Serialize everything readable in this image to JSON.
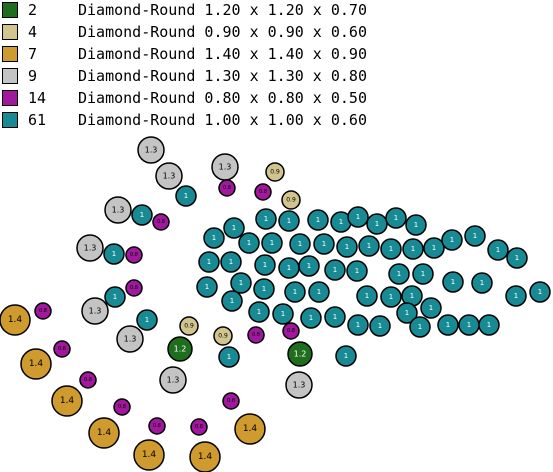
{
  "legend": [
    {
      "count": "2",
      "shape": "Diamond-Round",
      "size": "1.20 x 1.20 x 0.70",
      "color": "#1e6e1e"
    },
    {
      "count": "4",
      "shape": "Diamond-Round",
      "size": "0.90 x 0.90 x 0.60",
      "color": "#d1c48e"
    },
    {
      "count": "7",
      "shape": "Diamond-Round",
      "size": "1.40 x 1.40 x 0.90",
      "color": "#cf9a2e"
    },
    {
      "count": "9",
      "shape": "Diamond-Round",
      "size": "1.30 x 1.30 x 0.80",
      "color": "#c4c4c4"
    },
    {
      "count": "14",
      "shape": "Diamond-Round",
      "size": "0.80 x 0.80 x 0.50",
      "color": "#a0189c"
    },
    {
      "count": "61",
      "shape": "Diamond-Round",
      "size": "1.00 x 1.00 x 0.60",
      "color": "#188a94"
    }
  ],
  "stone_types": {
    "green": {
      "label": "1.2",
      "color": "#1e6e1e",
      "text_color": "#ffffff"
    },
    "beige": {
      "label": "0.9",
      "color": "#d1c48e",
      "text_color": "#000000"
    },
    "gold": {
      "label": "1.4",
      "color": "#cf9a2e",
      "text_color": "#000000"
    },
    "gray": {
      "label": "1.3",
      "color": "#c4c4c4",
      "text_color": "#000000"
    },
    "purple": {
      "label": "0.8",
      "color": "#a0189c",
      "text_color": "#000000"
    },
    "teal": {
      "label": "1",
      "color": "#188a94",
      "text_color": "#ffffff"
    }
  }
}
